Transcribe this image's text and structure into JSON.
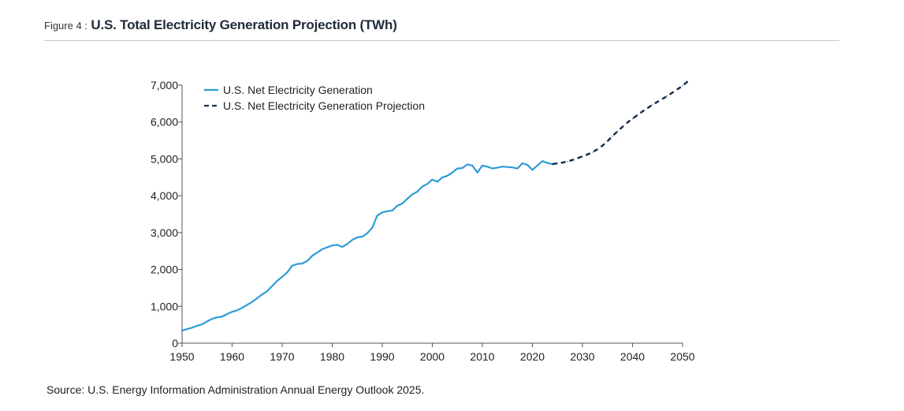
{
  "figure": {
    "prefix": "Figure 4 :",
    "title": "U.S. Total Electricity Generation Projection (TWh)",
    "source": "Source: U.S. Energy Information Administration Annual Energy Outlook 2025."
  },
  "chart_data": {
    "type": "line",
    "title": "U.S. Total Electricity Generation Projection (TWh)",
    "xlabel": "",
    "ylabel": "",
    "xlim": [
      1950,
      2051
    ],
    "ylim": [
      0,
      7000
    ],
    "grid": false,
    "legend_position": "top-left",
    "x_ticks": [
      1950,
      1960,
      1970,
      1980,
      1990,
      2000,
      2010,
      2020,
      2030,
      2040,
      2050
    ],
    "x_tick_labels": [
      "1950",
      "1960",
      "1970",
      "1980",
      "1990",
      "2000",
      "2010",
      "2020",
      "2030",
      "2040",
      "2050"
    ],
    "y_ticks": [
      0,
      1000,
      2000,
      3000,
      4000,
      5000,
      6000,
      7000
    ],
    "y_tick_labels": [
      "0",
      "1,000",
      "2,000",
      "3,000",
      "4,000",
      "5,000",
      "6,000",
      "7,000"
    ],
    "series": [
      {
        "name": "U.S. Net Electricity Generation",
        "color": "#2e9bd6",
        "style": "solid",
        "x": [
          1950,
          1951,
          1952,
          1953,
          1954,
          1955,
          1956,
          1957,
          1958,
          1959,
          1960,
          1961,
          1962,
          1963,
          1964,
          1965,
          1966,
          1967,
          1968,
          1969,
          1970,
          1971,
          1972,
          1973,
          1974,
          1975,
          1976,
          1977,
          1978,
          1979,
          1980,
          1981,
          1982,
          1983,
          1984,
          1985,
          1986,
          1987,
          1988,
          1989,
          1990,
          1991,
          1992,
          1993,
          1994,
          1995,
          1996,
          1997,
          1998,
          1999,
          2000,
          2001,
          2002,
          2003,
          2004,
          2005,
          2006,
          2007,
          2008,
          2009,
          2010,
          2011,
          2012,
          2013,
          2014,
          2015,
          2016,
          2017,
          2018,
          2019,
          2020,
          2021,
          2022,
          2023,
          2024
        ],
        "y": [
          340,
          380,
          420,
          470,
          510,
          590,
          660,
          700,
          720,
          790,
          850,
          890,
          960,
          1040,
          1120,
          1220,
          1320,
          1410,
          1550,
          1690,
          1800,
          1920,
          2100,
          2150,
          2160,
          2230,
          2370,
          2460,
          2550,
          2600,
          2650,
          2670,
          2610,
          2690,
          2800,
          2870,
          2890,
          2980,
          3130,
          3460,
          3550,
          3580,
          3600,
          3730,
          3790,
          3920,
          4040,
          4110,
          4250,
          4320,
          4440,
          4380,
          4500,
          4540,
          4630,
          4740,
          4750,
          4850,
          4820,
          4630,
          4820,
          4790,
          4740,
          4760,
          4790,
          4780,
          4770,
          4740,
          4880,
          4840,
          4700,
          4820,
          4940,
          4890,
          4860
        ]
      },
      {
        "name": "U.S. Net Electricity Generation Projection",
        "color": "#1a2f4e",
        "style": "dashed",
        "x": [
          2024,
          2025,
          2026,
          2027,
          2028,
          2029,
          2030,
          2031,
          2032,
          2033,
          2034,
          2035,
          2036,
          2037,
          2038,
          2039,
          2040,
          2041,
          2042,
          2043,
          2044,
          2045,
          2046,
          2047,
          2048,
          2049,
          2050,
          2051
        ],
        "y": [
          4860,
          4880,
          4900,
          4930,
          4970,
          5020,
          5070,
          5120,
          5180,
          5260,
          5360,
          5480,
          5620,
          5750,
          5870,
          5990,
          6090,
          6190,
          6290,
          6380,
          6470,
          6550,
          6630,
          6710,
          6800,
          6890,
          6980,
          7100
        ]
      }
    ]
  }
}
